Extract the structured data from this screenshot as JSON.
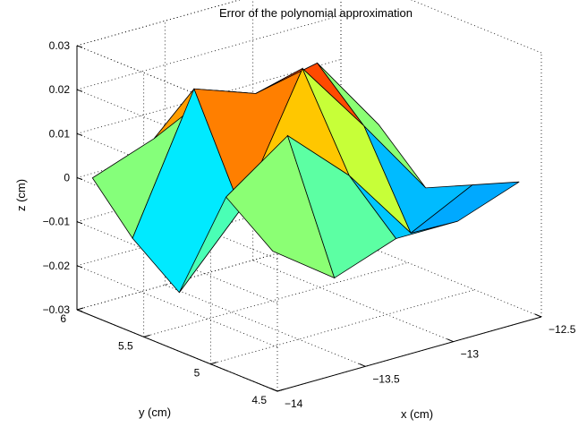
{
  "chart_data": {
    "type": "surface",
    "title": "Error of the polynomial approximation",
    "xlabel": "x (cm)",
    "ylabel": "y (cm)",
    "zlabel": "z (cm)",
    "xlim": [
      -14,
      -12.5
    ],
    "ylim": [
      4.5,
      6
    ],
    "zlim": [
      -0.03,
      0.03
    ],
    "x_ticks": [
      "−14",
      "−13.5",
      "−13",
      "−12.5"
    ],
    "y_ticks": [
      "4.5",
      "5",
      "5.5",
      "6"
    ],
    "z_ticks": [
      "−0.03",
      "−0.02",
      "−0.01",
      "0",
      "0.01",
      "0.02",
      "0.03"
    ],
    "grid": true,
    "colormap": "jet",
    "x": [
      -13.95,
      -13.6,
      -13.25,
      -12.9,
      -12.55
    ],
    "y": [
      4.6,
      4.95,
      5.3,
      5.65,
      5.95
    ],
    "z": [
      [
        0.0,
        -0.01,
        -0.005,
        -0.005,
        0.0
      ],
      [
        0.008,
        0.018,
        0.005,
        -0.012,
        -0.005
      ],
      [
        -0.018,
        -0.003,
        0.025,
        0.008,
        -0.01
      ],
      [
        -0.01,
        0.02,
        0.015,
        0.018,
        0.0
      ],
      [
        0.0,
        0.005,
        0.012,
        0.004,
        0.0
      ]
    ]
  }
}
